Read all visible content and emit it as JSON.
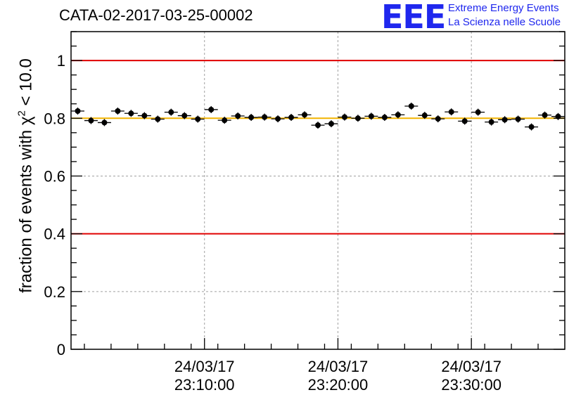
{
  "header": {
    "run_title": "CATA-02-2017-03-25-00002",
    "logo_text": "EEE",
    "logo_line1": "Extreme Energy Events",
    "logo_line2": "La Scienza nelle Scuole"
  },
  "colors": {
    "reference_lines": "#e00000",
    "mean_line": "#f2b400",
    "markers": "#000000",
    "logo": "#1f27ee",
    "grid": "#a0a0a0"
  },
  "chart_data": {
    "type": "scatter",
    "title": "CATA-02-2017-03-25-00002",
    "xlabel": "",
    "ylabel_prefix": "fraction of events with ",
    "ylabel_chi": "χ",
    "ylabel_exp": "2",
    "ylabel_suffix": " < 10.0",
    "ylim": [
      0,
      1.1
    ],
    "yticks": [
      "0",
      "0.2",
      "0.4",
      "0.6",
      "0.8",
      "1"
    ],
    "ytick_values": [
      0,
      0.2,
      0.4,
      0.6,
      0.8,
      1.0
    ],
    "xlim_minutes": [
      0,
      37
    ],
    "x_unit": "minutes after 24/03/17 23:00:00",
    "xticks": [
      {
        "date": "24/03/17",
        "time": "23:10:00",
        "minutes": 10
      },
      {
        "date": "24/03/17",
        "time": "23:20:00",
        "minutes": 20
      },
      {
        "date": "24/03/17",
        "time": "23:30:00",
        "minutes": 30
      }
    ],
    "grid": true,
    "reference_lines": [
      1.0,
      0.4
    ],
    "mean_line": 0.8,
    "bin_width_minutes": 1,
    "x": [
      0.5,
      1.5,
      2.5,
      3.5,
      4.5,
      5.5,
      6.5,
      7.5,
      8.5,
      9.5,
      10.5,
      11.5,
      12.5,
      13.5,
      14.5,
      15.5,
      16.5,
      17.5,
      18.5,
      19.5,
      20.5,
      21.5,
      22.5,
      23.5,
      24.5,
      25.5,
      26.5,
      27.5,
      28.5,
      29.5,
      30.5,
      31.5,
      32.5,
      33.5,
      34.5,
      35.5,
      36.5
    ],
    "values": [
      0.825,
      0.792,
      0.785,
      0.825,
      0.817,
      0.809,
      0.797,
      0.821,
      0.809,
      0.797,
      0.83,
      0.793,
      0.808,
      0.803,
      0.804,
      0.798,
      0.803,
      0.812,
      0.776,
      0.781,
      0.804,
      0.8,
      0.807,
      0.803,
      0.812,
      0.842,
      0.81,
      0.798,
      0.822,
      0.79,
      0.821,
      0.787,
      0.795,
      0.797,
      0.77,
      0.811,
      0.806
    ]
  }
}
